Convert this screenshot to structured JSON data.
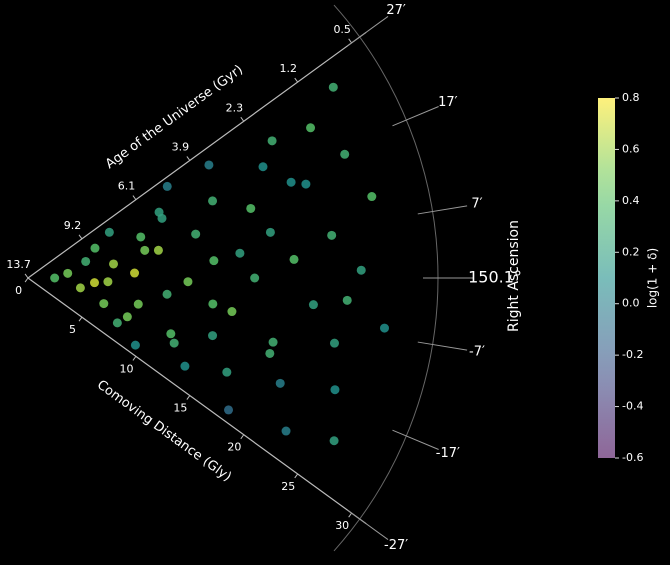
{
  "chart_data": {
    "type": "cone",
    "radial_title": "Comoving Distance (Gly)",
    "age_title": "Age of the Universe (Gyr)",
    "angle_title": "Right Ascension",
    "colorbar_label": "log(1 + δ)",
    "colormap": "viridis",
    "rlim": [
      0,
      30
    ],
    "rticks": [
      0,
      5,
      10,
      15,
      20,
      25,
      30
    ],
    "age_ticks": [
      {
        "value": 0,
        "label": "13.7"
      },
      {
        "value": 5,
        "label": "9.2"
      },
      {
        "value": 10,
        "label": "6.1"
      },
      {
        "value": 15,
        "label": "3.9"
      },
      {
        "value": 20,
        "label": "2.3"
      },
      {
        "value": 25,
        "label": "1.2"
      },
      {
        "value": 30,
        "label": "0.5"
      }
    ],
    "thetalim": [
      -27,
      27
    ],
    "thetaticks": [
      {
        "value": 27,
        "label": "27′"
      },
      {
        "value": 17,
        "label": "17′"
      },
      {
        "value": 7,
        "label": "7′"
      },
      {
        "value": 0,
        "label": "150.1°"
      },
      {
        "value": -7,
        "label": "-7′"
      },
      {
        "value": -17,
        "label": "-17′"
      },
      {
        "value": -27,
        "label": "-27′"
      }
    ],
    "clim": [
      -0.6,
      0.8
    ],
    "cticks": [
      -0.6,
      -0.4,
      -0.2,
      {
        "value": 0,
        "label": "0.0"
      },
      0.2,
      0.4,
      0.6,
      0.8
    ],
    "points": {
      "r": [
        2,
        3,
        4,
        4.5,
        5,
        5.5,
        6,
        6.5,
        7,
        7.5,
        8,
        8.5,
        9,
        9.5,
        10,
        10.5,
        11,
        11.5,
        12,
        12.5,
        13,
        13.5,
        14,
        14.5,
        15,
        15.5,
        16,
        16.5,
        17,
        17.5,
        18,
        18.5,
        19,
        19.5,
        20,
        20.5,
        21,
        21.5,
        22,
        22.5,
        23,
        23.5,
        24,
        24.5,
        25,
        25.5,
        26,
        26.5,
        27,
        27,
        6,
        9,
        12,
        14,
        16,
        19,
        21,
        24,
        8,
        11
      ],
      "theta": [
        0,
        5,
        -8,
        12,
        -3,
        18,
        -14,
        7,
        22,
        -20,
        2,
        -10,
        15,
        -24,
        9,
        -5,
        20,
        -16,
        -1,
        25,
        11,
        -22,
        4,
        -13,
        17,
        -7,
        24,
        -19,
        0,
        13,
        -25,
        8,
        -11,
        19,
        3,
        -17,
        22,
        -4,
        14,
        -23,
        6,
        -9,
        21,
        -15,
        1,
        16,
        -21,
        10,
        -6,
        24,
        -2,
        10,
        -18,
        -6,
        5,
        -13,
        15,
        -3,
        -16,
        18
      ],
      "values": [
        0.4,
        0.5,
        0.6,
        0.3,
        0.7,
        0.4,
        0.5,
        0.6,
        0.2,
        0.3,
        0.7,
        0.5,
        0.4,
        0.1,
        0.6,
        0.3,
        0.2,
        0.4,
        0.5,
        0,
        0.3,
        0.1,
        0.4,
        0.2,
        0.3,
        0.5,
        0,
        0.2,
        0.3,
        0.4,
        -0.1,
        0.2,
        0.3,
        0.1,
        0.4,
        0,
        0.3,
        0.2,
        0.1,
        0,
        0.3,
        0.2,
        0.4,
        0.1,
        0.2,
        0.3,
        0.2,
        0.4,
        0.1,
        0.3,
        0.6,
        0.5,
        0.3,
        0.4,
        0.2,
        0.3,
        0.1,
        0.3,
        0.5,
        0.2
      ]
    }
  }
}
